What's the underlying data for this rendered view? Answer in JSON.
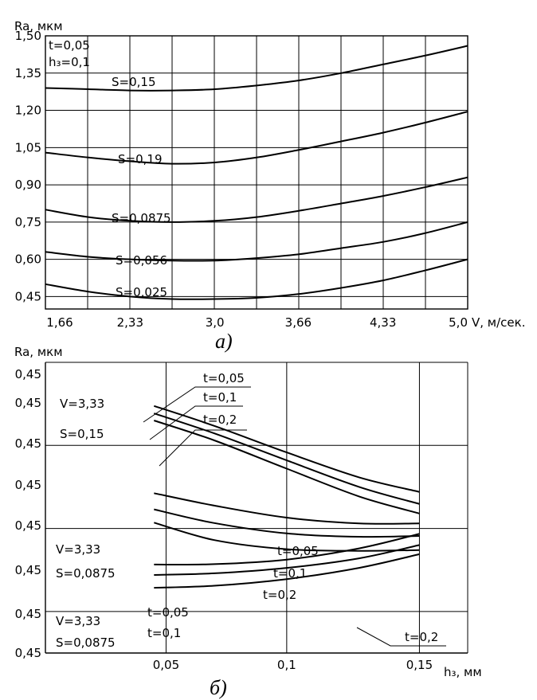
{
  "chart_data": [
    {
      "type": "line",
      "title": "а)",
      "ylabel": "Ra, мкм",
      "xlabel": "V, м/сек.",
      "params": [
        "t=0,05",
        "h₃=0,1"
      ],
      "x_ticks": [
        "1,66",
        "2,33",
        "3,0",
        "3,66",
        "4,33",
        "5,0"
      ],
      "y_ticks": [
        "1,50",
        "1,35",
        "1,20",
        "1,05",
        "0,90",
        "0,75",
        "0,60",
        "0,45"
      ],
      "xlim": [
        1.66,
        5.0
      ],
      "ylim": [
        0.4,
        1.5
      ],
      "grid": true,
      "series": [
        {
          "name": "S=0,15",
          "x": [
            1.66,
            2.0,
            2.33,
            2.66,
            3.0,
            3.33,
            3.66,
            4.0,
            4.33,
            4.66,
            5.0
          ],
          "y": [
            1.29,
            1.285,
            1.28,
            1.28,
            1.285,
            1.3,
            1.32,
            1.35,
            1.385,
            1.42,
            1.46
          ]
        },
        {
          "name": "S=0,19",
          "x": [
            1.66,
            2.0,
            2.33,
            2.66,
            3.0,
            3.33,
            3.66,
            4.0,
            4.33,
            4.66,
            5.0
          ],
          "y": [
            1.03,
            1.01,
            0.995,
            0.985,
            0.99,
            1.01,
            1.04,
            1.075,
            1.11,
            1.15,
            1.195
          ]
        },
        {
          "name": "S=0,0875",
          "x": [
            1.66,
            2.0,
            2.33,
            2.66,
            3.0,
            3.33,
            3.66,
            4.0,
            4.33,
            4.66,
            5.0
          ],
          "y": [
            0.8,
            0.77,
            0.755,
            0.75,
            0.755,
            0.77,
            0.795,
            0.825,
            0.855,
            0.89,
            0.93
          ]
        },
        {
          "name": "S=0,056",
          "x": [
            1.66,
            2.0,
            2.33,
            2.66,
            3.0,
            3.33,
            3.66,
            4.0,
            4.33,
            4.66,
            5.0
          ],
          "y": [
            0.63,
            0.61,
            0.6,
            0.595,
            0.595,
            0.605,
            0.62,
            0.645,
            0.67,
            0.705,
            0.75
          ]
        },
        {
          "name": "S=0,025",
          "x": [
            1.66,
            2.0,
            2.33,
            2.66,
            3.0,
            3.33,
            3.66,
            4.0,
            4.33,
            4.66,
            5.0
          ],
          "y": [
            0.5,
            0.47,
            0.45,
            0.44,
            0.44,
            0.445,
            0.46,
            0.485,
            0.515,
            0.555,
            0.6
          ]
        }
      ]
    },
    {
      "type": "line",
      "title": "б)",
      "ylabel": "Ra, мкм",
      "xlabel": "h₃, мм",
      "x_ticks": [
        "0,05",
        "0,1",
        "0,15"
      ],
      "y_ticks": [
        "0,45",
        "0,45",
        "0,45",
        "0,45",
        "0,45",
        "0,45",
        "0,45",
        "0,45"
      ],
      "xlim": [
        0.0,
        0.175
      ],
      "ylim": [
        0.0,
        7.0
      ],
      "grid": true,
      "groups": [
        {
          "label": [
            "V=3,33",
            "S=0,15"
          ]
        },
        {
          "label": [
            "V=3,33",
            "S=0,0875"
          ]
        },
        {
          "label": [
            "V=3,33",
            "S=0,0875"
          ]
        }
      ],
      "series": [
        {
          "name": "t=0,05",
          "group": 0,
          "x": [
            0.045,
            0.07,
            0.1,
            0.13,
            0.155
          ],
          "y": [
            5.95,
            5.47,
            4.83,
            4.23,
            3.88
          ]
        },
        {
          "name": "t=0,1",
          "group": 0,
          "x": [
            0.045,
            0.07,
            0.1,
            0.13,
            0.155
          ],
          "y": [
            5.77,
            5.29,
            4.64,
            4.0,
            3.59
          ]
        },
        {
          "name": "t=0,2",
          "group": 0,
          "x": [
            0.045,
            0.07,
            0.1,
            0.13,
            0.155
          ],
          "y": [
            5.6,
            5.12,
            4.44,
            3.77,
            3.36
          ]
        },
        {
          "name": "t=0,05",
          "group": 1,
          "x": [
            0.045,
            0.07,
            0.1,
            0.13,
            0.155
          ],
          "y": [
            3.85,
            3.55,
            3.26,
            3.12,
            3.12
          ]
        },
        {
          "name": "t=0,1",
          "group": 1,
          "x": [
            0.045,
            0.07,
            0.1,
            0.13,
            0.155
          ],
          "y": [
            3.46,
            3.13,
            2.88,
            2.8,
            2.82
          ]
        },
        {
          "name": "t=0,2",
          "group": 1,
          "x": [
            0.045,
            0.07,
            0.1,
            0.13,
            0.155
          ],
          "y": [
            3.14,
            2.72,
            2.5,
            2.46,
            2.48
          ]
        },
        {
          "name": "t=0,05",
          "group": 2,
          "x": [
            0.045,
            0.07,
            0.1,
            0.13,
            0.155
          ],
          "y": [
            2.13,
            2.14,
            2.25,
            2.52,
            2.87
          ]
        },
        {
          "name": "t=0,1",
          "group": 2,
          "x": [
            0.045,
            0.07,
            0.1,
            0.13,
            0.155
          ],
          "y": [
            1.88,
            1.92,
            2.05,
            2.28,
            2.6
          ]
        },
        {
          "name": "t=0,2",
          "group": 2,
          "x": [
            0.045,
            0.07,
            0.1,
            0.13,
            0.155
          ],
          "y": [
            1.57,
            1.62,
            1.78,
            2.05,
            2.38
          ]
        }
      ]
    }
  ]
}
